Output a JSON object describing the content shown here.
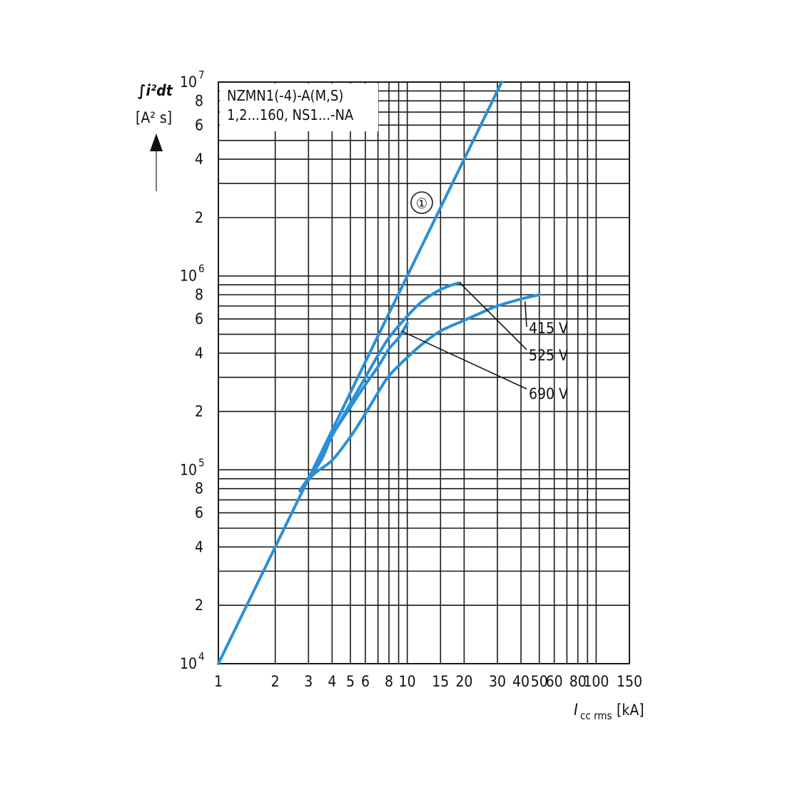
{
  "chart_data": {
    "type": "line",
    "title": "NZMN1(-4)-A(M,S)",
    "subtitle": "1,2...160, NS1...-NA",
    "y_axis": {
      "label_main": "∫i²dt",
      "label_unit": "[A² s]",
      "scale": "log",
      "range": [
        10000,
        10000000
      ],
      "tick_labels": [
        {
          "value": 10000,
          "mant": "10",
          "exp": "4"
        },
        {
          "value": 20000,
          "mant": "2"
        },
        {
          "value": 40000,
          "mant": "4"
        },
        {
          "value": 60000,
          "mant": "6"
        },
        {
          "value": 80000,
          "mant": "8"
        },
        {
          "value": 100000,
          "mant": "10",
          "exp": "5"
        },
        {
          "value": 200000,
          "mant": "2"
        },
        {
          "value": 400000,
          "mant": "4"
        },
        {
          "value": 600000,
          "mant": "6"
        },
        {
          "value": 800000,
          "mant": "8"
        },
        {
          "value": 1000000,
          "mant": "10",
          "exp": "6"
        },
        {
          "value": 2000000,
          "mant": "2"
        },
        {
          "value": 4000000,
          "mant": "4"
        },
        {
          "value": 6000000,
          "mant": "6"
        },
        {
          "value": 8000000,
          "mant": "8"
        },
        {
          "value": 10000000,
          "mant": "10",
          "exp": "7"
        }
      ],
      "gridlines": [
        10000,
        20000,
        30000,
        40000,
        50000,
        60000,
        70000,
        80000,
        90000,
        100000,
        200000,
        300000,
        400000,
        500000,
        600000,
        700000,
        800000,
        900000,
        1000000,
        2000000,
        3000000,
        4000000,
        5000000,
        6000000,
        7000000,
        8000000,
        9000000,
        10000000
      ]
    },
    "x_axis": {
      "label_main": "I",
      "label_sub": "cc rms",
      "label_unit": "[kA]",
      "scale": "log",
      "range": [
        1,
        150
      ],
      "tick_labels": [
        {
          "value": 1,
          "text": "1"
        },
        {
          "value": 2,
          "text": "2"
        },
        {
          "value": 3,
          "text": "3"
        },
        {
          "value": 4,
          "text": "4"
        },
        {
          "value": 5,
          "text": "5"
        },
        {
          "value": 6,
          "text": "6"
        },
        {
          "value": 8,
          "text": "8"
        },
        {
          "value": 10,
          "text": "10"
        },
        {
          "value": 15,
          "text": "15"
        },
        {
          "value": 20,
          "text": "20"
        },
        {
          "value": 30,
          "text": "30"
        },
        {
          "value": 40,
          "text": "40"
        },
        {
          "value": 50,
          "text": "50"
        },
        {
          "value": 60,
          "text": "60"
        },
        {
          "value": 80,
          "text": "80"
        },
        {
          "value": 100,
          "text": "100"
        },
        {
          "value": 150,
          "text": "150"
        }
      ],
      "gridlines": [
        1,
        2,
        3,
        4,
        5,
        6,
        7,
        8,
        9,
        10,
        15,
        20,
        30,
        40,
        50,
        60,
        70,
        80,
        90,
        100,
        150
      ]
    },
    "series": [
      {
        "name": "①",
        "points": [
          [
            1,
            10000
          ],
          [
            2,
            40000
          ],
          [
            4,
            160000
          ],
          [
            8,
            640000
          ],
          [
            10,
            1000000
          ],
          [
            15,
            2250000
          ],
          [
            20,
            4000000
          ],
          [
            31.6,
            10000000
          ]
        ]
      },
      {
        "name": "415 V",
        "points": [
          [
            2.7,
            78000
          ],
          [
            3.2,
            95000
          ],
          [
            4,
            112000
          ],
          [
            5,
            148000
          ],
          [
            6,
            195000
          ],
          [
            7,
            250000
          ],
          [
            8,
            305000
          ],
          [
            10,
            380000
          ],
          [
            12,
            445000
          ],
          [
            15,
            520000
          ],
          [
            20,
            590000
          ],
          [
            25,
            650000
          ],
          [
            30,
            700000
          ],
          [
            40,
            760000
          ],
          [
            50,
            800000
          ]
        ]
      },
      {
        "name": "525 V",
        "points": [
          [
            2.7,
            78000
          ],
          [
            3.5,
            115000
          ],
          [
            4,
            150000
          ],
          [
            5,
            220000
          ],
          [
            6,
            300000
          ],
          [
            7,
            390000
          ],
          [
            8,
            480000
          ],
          [
            10,
            620000
          ],
          [
            12,
            740000
          ],
          [
            15,
            850000
          ],
          [
            18,
            910000
          ],
          [
            19,
            920000
          ]
        ]
      },
      {
        "name": "690 V",
        "points": [
          [
            2.7,
            78000
          ],
          [
            3.5,
            112000
          ],
          [
            4,
            150000
          ],
          [
            5,
            210000
          ],
          [
            6,
            275000
          ],
          [
            7,
            340000
          ],
          [
            8,
            420000
          ],
          [
            9,
            480000
          ],
          [
            10,
            570000
          ]
        ]
      }
    ],
    "annotations": [
      {
        "label": "①",
        "anchor_series": "①"
      },
      {
        "label": "415 V",
        "anchor_series": "415 V"
      },
      {
        "label": "525 V",
        "anchor_series": "525 V"
      },
      {
        "label": "690 V",
        "anchor_series": "690 V"
      }
    ],
    "grid": true,
    "colors": {
      "curves": "#2a8fd8",
      "grid": "#1a1a1a"
    }
  }
}
